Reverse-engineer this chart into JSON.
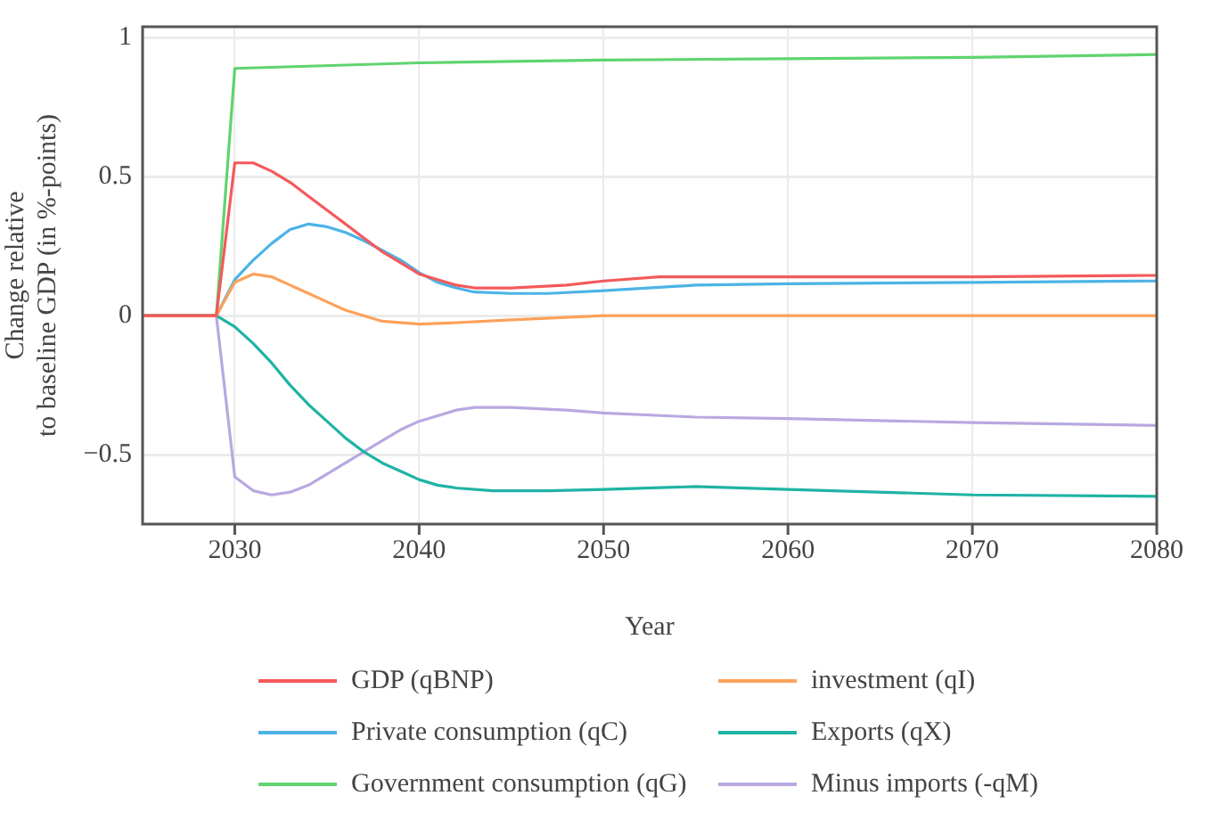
{
  "chart_data": {
    "type": "line",
    "xlabel": "Year",
    "ylabel": "Change relative\nto baseline GDP (in %-points)",
    "xlim": [
      2025,
      2080
    ],
    "xticks": [
      2030,
      2040,
      2050,
      2060,
      2070,
      2080
    ],
    "ylim": [
      -0.75,
      1.04
    ],
    "yticks": [
      {
        "value": -0.5,
        "label": "−0.5"
      },
      0,
      0.5,
      1
    ],
    "grid": true,
    "legend": "bottom",
    "marker": "none",
    "line_style": "solid",
    "series": [
      {
        "name": "GDP (qBNP)",
        "color": "#f4595b",
        "x": [
          2025,
          2029,
          2030,
          2031,
          2032,
          2033,
          2034,
          2035,
          2036,
          2037,
          2038,
          2039,
          2040,
          2041,
          2042,
          2043,
          2045,
          2048,
          2050,
          2053,
          2060,
          2070,
          2080
        ],
        "values": [
          0,
          0,
          0.55,
          0.55,
          0.52,
          0.48,
          0.43,
          0.38,
          0.33,
          0.28,
          0.23,
          0.19,
          0.15,
          0.13,
          0.11,
          0.1,
          0.1,
          0.11,
          0.125,
          0.14,
          0.14,
          0.14,
          0.145
        ]
      },
      {
        "name": "investment (qI)",
        "color": "#fda15a",
        "x": [
          2025,
          2029,
          2030,
          2031,
          2032,
          2033,
          2034,
          2035,
          2036,
          2037,
          2038,
          2040,
          2042,
          2045,
          2050,
          2060,
          2070,
          2080
        ],
        "values": [
          0,
          0,
          0.12,
          0.15,
          0.14,
          0.11,
          0.08,
          0.05,
          0.02,
          0,
          -0.02,
          -0.03,
          -0.025,
          -0.015,
          0,
          0,
          0,
          0
        ]
      },
      {
        "name": "Private consumption (qC)",
        "color": "#4cb3e6",
        "x": [
          2025,
          2029,
          2030,
          2031,
          2032,
          2033,
          2034,
          2035,
          2036,
          2037,
          2038,
          2039,
          2040,
          2041,
          2042,
          2043,
          2045,
          2047,
          2050,
          2055,
          2060,
          2070,
          2080
        ],
        "values": [
          0,
          0,
          0.13,
          0.2,
          0.26,
          0.31,
          0.33,
          0.32,
          0.3,
          0.27,
          0.235,
          0.2,
          0.155,
          0.12,
          0.1,
          0.085,
          0.08,
          0.08,
          0.09,
          0.11,
          0.115,
          0.12,
          0.125
        ]
      },
      {
        "name": "Exports (qX)",
        "color": "#1fb3a5",
        "x": [
          2025,
          2029,
          2030,
          2031,
          2032,
          2033,
          2034,
          2035,
          2036,
          2037,
          2038,
          2039,
          2040,
          2041,
          2042,
          2044,
          2047,
          2050,
          2055,
          2060,
          2070,
          2080
        ],
        "values": [
          0,
          0,
          -0.04,
          -0.1,
          -0.17,
          -0.25,
          -0.32,
          -0.38,
          -0.44,
          -0.49,
          -0.53,
          -0.56,
          -0.59,
          -0.61,
          -0.62,
          -0.63,
          -0.63,
          -0.625,
          -0.615,
          -0.625,
          -0.645,
          -0.65
        ]
      },
      {
        "name": "Government consumption (qG)",
        "color": "#5fd46f",
        "x": [
          2025,
          2029,
          2030,
          2040,
          2050,
          2060,
          2070,
          2080
        ],
        "values": [
          0,
          0,
          0.89,
          0.91,
          0.92,
          0.925,
          0.93,
          0.94
        ]
      },
      {
        "name": "Minus imports (-qM)",
        "color": "#b9a8e0",
        "x": [
          2025,
          2029,
          2030,
          2031,
          2032,
          2033,
          2034,
          2035,
          2036,
          2037,
          2038,
          2039,
          2040,
          2041,
          2042,
          2043,
          2045,
          2048,
          2050,
          2055,
          2060,
          2070,
          2080
        ],
        "values": [
          0,
          0,
          -0.58,
          -0.63,
          -0.645,
          -0.635,
          -0.61,
          -0.57,
          -0.53,
          -0.49,
          -0.45,
          -0.41,
          -0.38,
          -0.36,
          -0.34,
          -0.33,
          -0.33,
          -0.34,
          -0.35,
          -0.365,
          -0.37,
          -0.385,
          -0.395
        ]
      }
    ]
  }
}
